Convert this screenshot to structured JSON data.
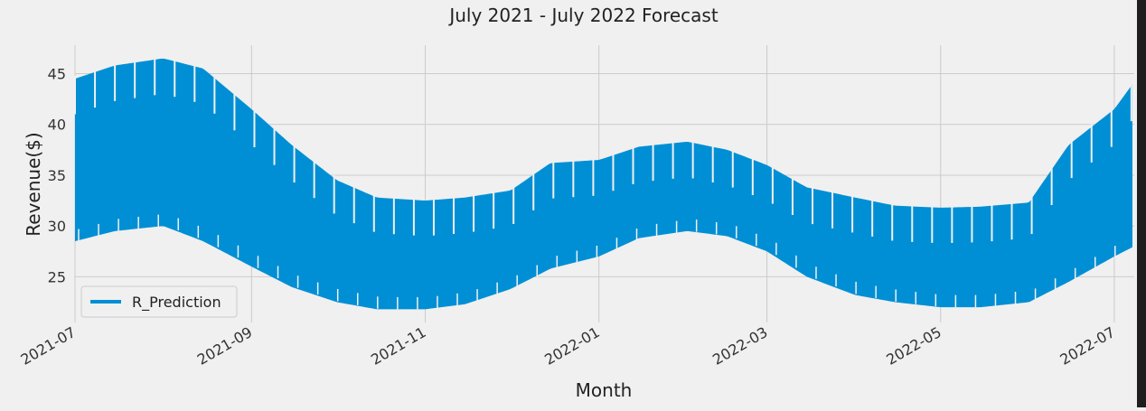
{
  "chart_data": {
    "type": "line",
    "title": "July 2021 - July 2022 Forecast",
    "xlabel": "Month",
    "ylabel": "Revenue($)",
    "x_ticks": [
      "2021-07",
      "2021-09",
      "2021-11",
      "2022-01",
      "2022-03",
      "2022-05",
      "2022-07"
    ],
    "y_ticks": [
      25,
      30,
      35,
      40,
      45
    ],
    "xlim": [
      "2021-07-01",
      "2022-07-08"
    ],
    "ylim": [
      20.5,
      47.8
    ],
    "grid": true,
    "legend_position": "lower-left",
    "series": [
      {
        "name": "R_Prediction",
        "color": "#008fd5",
        "envelope": {
          "dates": [
            "2021-07-01",
            "2021-07-15",
            "2021-08-01",
            "2021-08-15",
            "2021-09-01",
            "2021-09-15",
            "2021-10-01",
            "2021-10-15",
            "2021-11-01",
            "2021-11-15",
            "2021-12-01",
            "2021-12-15",
            "2022-01-01",
            "2022-01-15",
            "2022-02-01",
            "2022-02-15",
            "2022-03-01",
            "2022-03-15",
            "2022-04-01",
            "2022-04-15",
            "2022-05-01",
            "2022-05-15",
            "2022-06-01",
            "2022-06-15",
            "2022-07-01",
            "2022-07-08"
          ],
          "upper": [
            44.5,
            45.8,
            46.5,
            45.5,
            41.5,
            38.0,
            34.5,
            32.8,
            32.5,
            32.8,
            33.5,
            36.2,
            36.5,
            37.8,
            38.3,
            37.5,
            36.0,
            33.8,
            32.8,
            32.0,
            31.8,
            31.9,
            32.3,
            38.0,
            41.5,
            44.2
          ],
          "lower": [
            28.5,
            29.5,
            30.0,
            28.5,
            26.0,
            24.0,
            22.5,
            21.8,
            21.8,
            22.3,
            23.8,
            25.8,
            27.0,
            28.8,
            29.5,
            29.0,
            27.5,
            25.0,
            23.2,
            22.5,
            22.0,
            22.0,
            22.5,
            24.5,
            27.0,
            28.0
          ]
        }
      }
    ]
  }
}
